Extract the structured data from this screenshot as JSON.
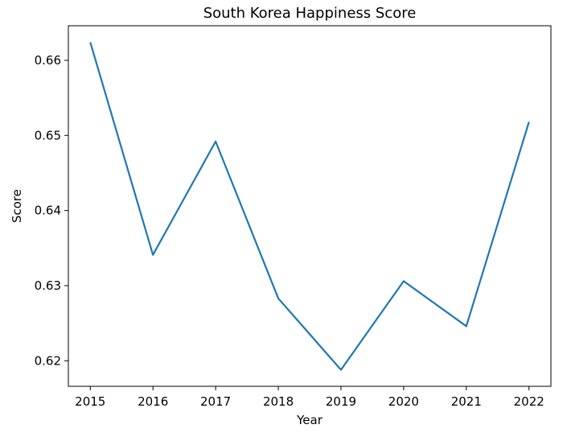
{
  "chart_data": {
    "type": "line",
    "title": "South Korea Happiness Score",
    "xlabel": "Year",
    "ylabel": "Score",
    "x": [
      2015,
      2016,
      2017,
      2018,
      2019,
      2020,
      2021,
      2022
    ],
    "series": [
      {
        "values": [
          0.6624,
          0.6341,
          0.6492,
          0.6283,
          0.6188,
          0.6306,
          0.6246,
          0.6518
        ],
        "color": "#1f77b4"
      }
    ],
    "x_ticks": [
      "2015",
      "2016",
      "2017",
      "2018",
      "2019",
      "2020",
      "2021",
      "2022"
    ],
    "y_ticks": [
      "0.62",
      "0.63",
      "0.64",
      "0.65",
      "0.66"
    ],
    "xlim": [
      2014.65,
      2022.35
    ],
    "ylim": [
      0.6166,
      0.6646
    ],
    "grid": false,
    "legend": "none"
  }
}
